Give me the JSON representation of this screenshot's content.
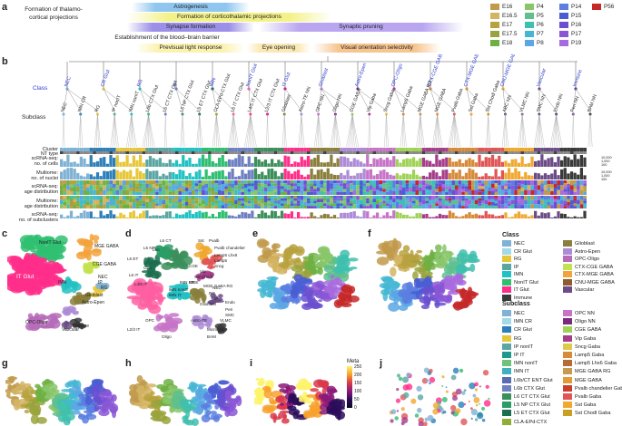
{
  "panel_a": {
    "label": "a",
    "events": [
      {
        "text": "Formation of thalamo-\ncortical projections",
        "color": "#ffffff"
      },
      {
        "text": "Astrogenesis",
        "color": "#8fc6f0"
      },
      {
        "text": "Formation of corticothalamic projections",
        "color": "#f3f28a"
      },
      {
        "text": "Synapse formation",
        "color": "#9b8fe8"
      },
      {
        "text": "Synaptic pruning",
        "color": "#b9a5f0"
      },
      {
        "text": "Establishment of the blood–brain barrier",
        "color": "#ffffff"
      },
      {
        "text": "Previsual light response",
        "color": "#fbf2b0"
      },
      {
        "text": "Eye opening",
        "color": "#fbe9b5"
      },
      {
        "text": "Visual orientation selectivity",
        "color": "#f7c58f"
      }
    ],
    "ages": [
      {
        "name": "E16",
        "color": "#c19a4b"
      },
      {
        "name": "E16.5",
        "color": "#d3b463"
      },
      {
        "name": "E17",
        "color": "#b7a23f"
      },
      {
        "name": "E17.5",
        "color": "#9aa33c"
      },
      {
        "name": "E18",
        "color": "#6fb043"
      },
      {
        "name": "P4",
        "color": "#89c66a"
      },
      {
        "name": "P5",
        "color": "#5fbf8f"
      },
      {
        "name": "P6",
        "color": "#3fbfae"
      },
      {
        "name": "P7",
        "color": "#45b7d4"
      },
      {
        "name": "P8",
        "color": "#5aa7e4"
      },
      {
        "name": "P14",
        "color": "#5b7ee0"
      },
      {
        "name": "P15",
        "color": "#4a5ed4"
      },
      {
        "name": "P16",
        "color": "#6a4fd0"
      },
      {
        "name": "P17",
        "color": "#8a56d6"
      },
      {
        "name": "P19",
        "color": "#a86bdf"
      },
      {
        "name": "P56",
        "color": "#c62828"
      }
    ]
  },
  "panel_b": {
    "label": "b",
    "class_label": "Class",
    "subclass_label": "Subclass",
    "rows": [
      "Cluster",
      "NT type",
      "scRNA-seq:\nno. of cells",
      "Multiome:\nno. of nuclei",
      "scRNA-seq:\nage distribution",
      "Multiome:\nage distribution",
      "scRNA-seq:\nno. of subclusters"
    ],
    "scale_ticks": [
      "10,000",
      "1,000",
      "100"
    ],
    "class_names": [
      "NEC",
      "CR Glut",
      "RG",
      "IP",
      "IMN",
      "NonIT Glut",
      "IT Glut",
      "Glioblast",
      "Astro-Epen",
      "OPC-Oligo",
      "CTX-CGE GABA",
      "CTX-MGE GABA",
      "CNU-MGE GABA",
      "Vascular",
      "Immune"
    ],
    "subclass_names": [
      "NEC",
      "IMN CR",
      "RG",
      "IP nonIT",
      "IMN nonIT",
      "L6b CTX Glut",
      "L6 CT CTX Glut",
      "L5 NP CTX Glut",
      "L5 ET CTX Glut",
      "CLA-EPd-CTX Glut",
      "L6 IT CTX Glut",
      "L4/5 IT CTX Glut",
      "L2/3 IT CTX Glut",
      "Glioblast",
      "Astro-TE NN",
      "OPC NN",
      "Oligo NN",
      "CGE GABA",
      "Vip Gaba",
      "Sncg Gaba",
      "Lamp5 Gaba",
      "MGE GABA RG",
      "MGE GABA",
      "Pvalb Gaba",
      "Sst Gaba",
      "Sst Chodl Gaba",
      "ABC NN",
      "VLMC NN",
      "SMC NN",
      "Endo NN",
      "Peri NN",
      "BAM NN"
    ]
  },
  "panel_c": {
    "label": "c",
    "annotations": [
      "NonIT Glut",
      "MGE GABA",
      "CGE GABA",
      "IT Glut",
      "IMN",
      "NEC",
      "IP",
      "RG",
      "Glioblast",
      "Astro-Epen",
      "OPC-Oligo",
      "Immune",
      "Vascular"
    ]
  },
  "panel_d": {
    "label": "d",
    "annotations": [
      "L6 CT",
      "L6b",
      "L5 ET",
      "L5 NP",
      "Sst",
      "Pvalb",
      "Pvalb chandelier",
      "Lamp5 Lhx6",
      "Lamp5",
      "Sncg",
      "Vip",
      "Sst Chodl",
      "CGE",
      "MGE",
      "MGE GABA RG",
      "L6 IT",
      "L4/5 IT",
      "CLA",
      "IMN CR",
      "IMN nonIT",
      "IMN IT",
      "RG",
      "NEC",
      "IP",
      "Endo",
      "Glioblast",
      "Peri",
      "SMC",
      "VLMC",
      "OPC",
      "Oligo",
      "Astro-TE",
      "Microglia",
      "BAM",
      "L2/3 IT"
    ]
  },
  "panel_e": {
    "label": "e"
  },
  "panel_f": {
    "label": "f"
  },
  "panel_g": {
    "label": "g"
  },
  "panel_h": {
    "label": "h"
  },
  "panel_i": {
    "label": "i",
    "colorbar_title": "Meta",
    "colorbar_ticks": [
      "250",
      "200",
      "150",
      "100",
      "50",
      "0"
    ]
  },
  "panel_j": {
    "label": "j"
  },
  "legend_class": {
    "title": "Class",
    "items": [
      {
        "name": "NEC",
        "color": "#7fb2d4"
      },
      {
        "name": "Glioblast",
        "color": "#8a7f3b"
      },
      {
        "name": "CR Glut",
        "color": "#a3d9e8"
      },
      {
        "name": "Astro-Epen",
        "color": "#ad8bd6"
      },
      {
        "name": "RG",
        "color": "#e7c73a"
      },
      {
        "name": "OPC-Oligo",
        "color": "#b56bb8"
      },
      {
        "name": "IP",
        "color": "#5aa6a2"
      },
      {
        "name": "CTX-CGE GABA",
        "color": "#c4e24f"
      },
      {
        "name": "IMN",
        "color": "#22c1c3"
      },
      {
        "name": "CTX-MGE GABA",
        "color": "#f2a33b"
      },
      {
        "name": "NonIT Glut",
        "color": "#2fbf71"
      },
      {
        "name": "CNU-MGE GABA",
        "color": "#8e5b2e"
      },
      {
        "name": "IT Glut",
        "color": "#ff2e8a"
      },
      {
        "name": "Vascular",
        "color": "#6b4c86"
      },
      {
        "name": "Immune",
        "color": "#3a3a3a"
      }
    ]
  },
  "legend_subclass": {
    "title": "Subclass",
    "items": [
      {
        "name": "NEC",
        "color": "#7fb2d4"
      },
      {
        "name": "OPC NN",
        "color": "#c774c8"
      },
      {
        "name": "IMN CR",
        "color": "#a3d9e8"
      },
      {
        "name": "Oligo NN",
        "color": "#7a2b7c"
      },
      {
        "name": "CR Glut",
        "color": "#2c7fb8"
      },
      {
        "name": "CGE GABA",
        "color": "#9fd356"
      },
      {
        "name": "RG",
        "color": "#e7c73a"
      },
      {
        "name": "Vip Gaba",
        "color": "#a53d8b"
      },
      {
        "name": "IP nonIT",
        "color": "#5aa6a2"
      },
      {
        "name": "Sncg Gaba",
        "color": "#e0c848"
      },
      {
        "name": "IP IT",
        "color": "#1f9a8a"
      },
      {
        "name": "Lamp5 Gaba",
        "color": "#d68a3a"
      },
      {
        "name": "IMN nonIT",
        "color": "#6ec27a"
      },
      {
        "name": "Lamp5 Lhx6 Gaba",
        "color": "#b66a34"
      },
      {
        "name": "IMN IT",
        "color": "#3fb0c0"
      },
      {
        "name": "MGE GABA RG",
        "color": "#c79a4f"
      },
      {
        "name": "L6b/CT ENT Glut",
        "color": "#5a6bb0"
      },
      {
        "name": "MGE GABA",
        "color": "#e39a3a"
      },
      {
        "name": "L6b CTX Glut",
        "color": "#6e7fc2"
      },
      {
        "name": "Pvalb chandelier Gaba",
        "color": "#c7402d"
      },
      {
        "name": "L6 CT CTX Glut",
        "color": "#3b8f5a"
      },
      {
        "name": "Pvalb Gaba",
        "color": "#e05656"
      },
      {
        "name": "L5 NP CTX Glut",
        "color": "#2a9d66"
      },
      {
        "name": "Sst Gaba",
        "color": "#f0a830"
      },
      {
        "name": "L5 ET CTX Glut",
        "color": "#1b6e4f"
      },
      {
        "name": "Sst Chodl Gaba",
        "color": "#c9a020"
      },
      {
        "name": "CLA-EPd-CTX",
        "color": "#8fae3a"
      }
    ]
  }
}
